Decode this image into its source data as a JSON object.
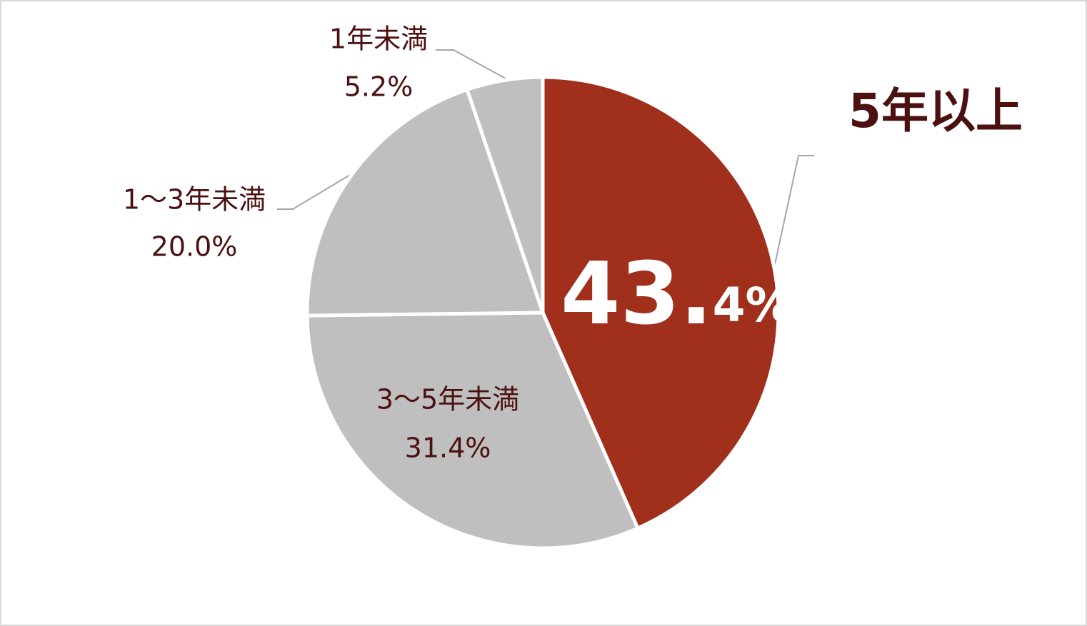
{
  "chart_data": {
    "type": "pie",
    "categories": [
      "5年以上",
      "3～5年未満",
      "1～3年未満",
      "1年未満"
    ],
    "values": [
      43.4,
      31.4,
      20.0,
      5.2
    ],
    "value_labels": [
      "43.4%",
      "31.4%",
      "20.0%",
      "5.2%"
    ],
    "colors": [
      "#a0301c",
      "#bfbfbf",
      "#bfbfbf",
      "#bfbfbf"
    ]
  }
}
